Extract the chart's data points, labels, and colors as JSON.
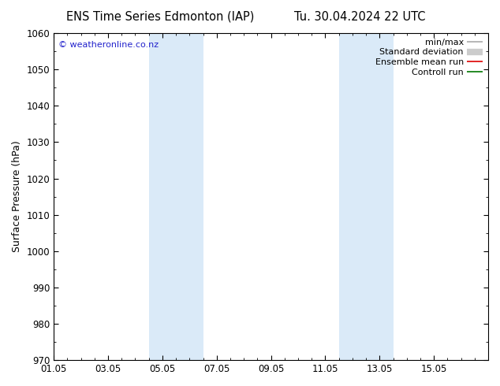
{
  "title_left": "ENS Time Series Edmonton (IAP)",
  "title_right": "Tu. 30.04.2024 22 UTC",
  "ylabel": "Surface Pressure (hPa)",
  "ylim": [
    970,
    1060
  ],
  "yticks": [
    970,
    980,
    990,
    1000,
    1010,
    1020,
    1030,
    1040,
    1050,
    1060
  ],
  "xlim_start": 0,
  "xlim_end": 16,
  "xtick_positions": [
    0,
    2,
    4,
    6,
    8,
    10,
    12,
    14
  ],
  "xtick_labels": [
    "01.05",
    "03.05",
    "05.05",
    "07.05",
    "09.05",
    "11.05",
    "13.05",
    "15.05"
  ],
  "shaded_bands": [
    {
      "xmin": 3.5,
      "xmax": 5.5
    },
    {
      "xmin": 10.5,
      "xmax": 12.5
    }
  ],
  "shade_color": "#daeaf8",
  "watermark": "© weatheronline.co.nz",
  "watermark_color": "#2222cc",
  "legend_items": [
    {
      "label": "min/max",
      "color": "#aaaaaa",
      "lw": 1.2,
      "type": "line"
    },
    {
      "label": "Standard deviation",
      "color": "#cccccc",
      "lw": 6,
      "type": "line"
    },
    {
      "label": "Ensemble mean run",
      "color": "#dd0000",
      "lw": 1.2,
      "type": "line"
    },
    {
      "label": "Controll run",
      "color": "#007700",
      "lw": 1.2,
      "type": "line"
    }
  ],
  "background_color": "#ffffff",
  "title_fontsize": 10.5,
  "ylabel_fontsize": 9,
  "tick_fontsize": 8.5,
  "legend_fontsize": 8,
  "watermark_fontsize": 8
}
